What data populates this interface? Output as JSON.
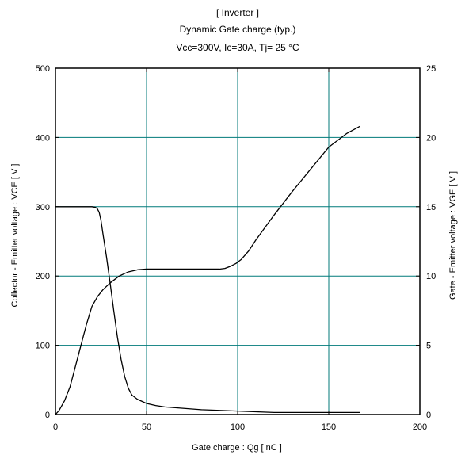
{
  "chart_data": {
    "type": "line",
    "title": [
      "[ Inverter ]",
      "Dynamic Gate charge  (typ.)",
      "Vcc=300V, Ic=30A, Tj= 25  °C"
    ],
    "xlabel": "Gate charge  :  Qg  [ nC ]",
    "ylabel": "Collector - Emitter voltage  :  VCE  [ V ]",
    "y2label": "Gate - Emitter voltage  :  VGE  [ V ]",
    "xlim": [
      0,
      200
    ],
    "ylim": [
      0,
      500
    ],
    "y2lim": [
      0,
      25
    ],
    "x_ticks": [
      "0",
      "50",
      "100",
      "150",
      "200"
    ],
    "y_ticks": [
      "0",
      "100",
      "200",
      "300",
      "400",
      "500"
    ],
    "y2_ticks": [
      "0",
      "5",
      "10",
      "15",
      "20",
      "25"
    ],
    "grid": true,
    "grid_color": "#007a7a",
    "line_color": "#000000",
    "series": [
      {
        "axis": "left",
        "x": [
          0,
          5,
          10,
          15,
          20,
          22,
          23,
          24,
          25,
          26,
          28,
          30,
          32,
          34,
          36,
          38,
          40,
          42,
          45,
          50,
          55,
          60,
          70,
          80,
          90,
          100,
          110,
          120,
          130,
          140,
          150,
          160,
          167
        ],
        "y": [
          300,
          300,
          300,
          300,
          300,
          299,
          297,
          292,
          280,
          262,
          228,
          190,
          150,
          112,
          80,
          55,
          38,
          28,
          22,
          16,
          13,
          11,
          9,
          7,
          6,
          5,
          4,
          3,
          3,
          3,
          3,
          3,
          3
        ]
      },
      {
        "axis": "right",
        "x": [
          0,
          2,
          5,
          8,
          11,
          14,
          17,
          20,
          23,
          26,
          30,
          35,
          40,
          45,
          50,
          60,
          70,
          80,
          85,
          90,
          93,
          96,
          99,
          102,
          106,
          110,
          120,
          130,
          140,
          150,
          160,
          167
        ],
        "y": [
          0,
          0.3,
          1.0,
          2.0,
          3.5,
          5.0,
          6.5,
          7.8,
          8.5,
          9.0,
          9.5,
          10.0,
          10.3,
          10.45,
          10.5,
          10.5,
          10.5,
          10.5,
          10.5,
          10.5,
          10.55,
          10.7,
          10.9,
          11.2,
          11.8,
          12.6,
          14.4,
          16.1,
          17.7,
          19.3,
          20.3,
          20.8
        ]
      }
    ]
  }
}
